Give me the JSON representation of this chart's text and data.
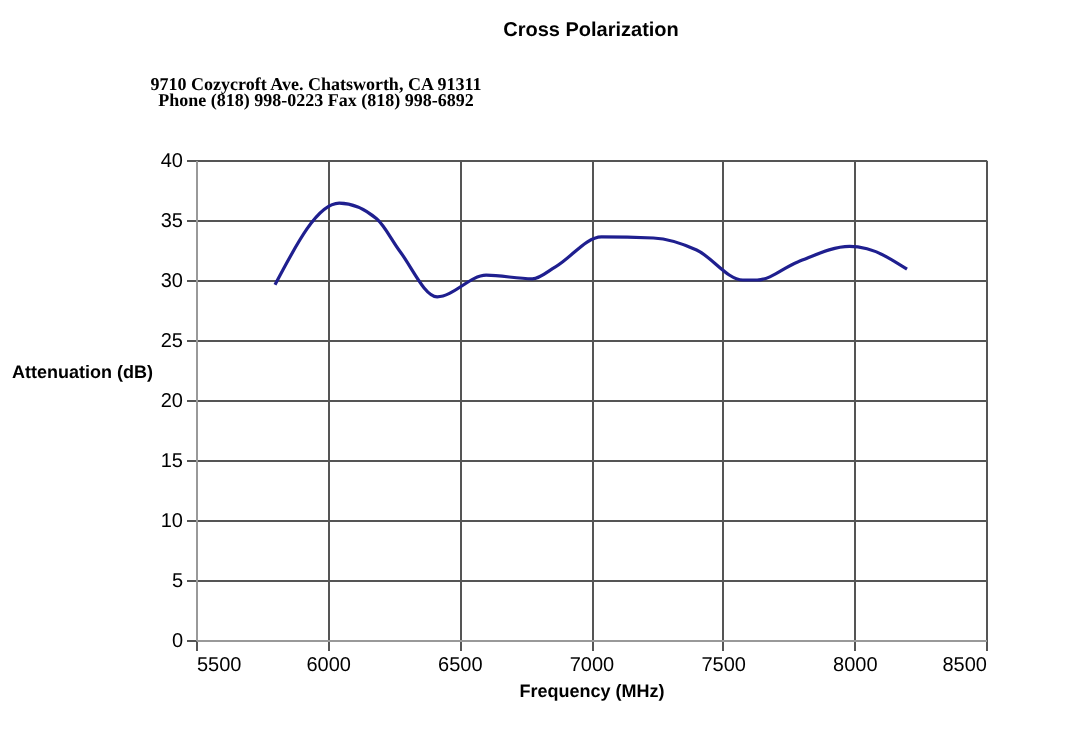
{
  "chart_data": {
    "type": "line",
    "title": "Cross Polarization",
    "xlabel": "Frequency (MHz)",
    "ylabel": "Attenuation (dB)",
    "annotations": [
      "9710 Cozycroft Ave. Chatsworth, CA 91311",
      "Phone (818) 998-0223 Fax (818) 998-6892"
    ],
    "x": [
      5800,
      6044,
      6186,
      6274,
      6416,
      6602,
      6777,
      6865,
      7040,
      7237,
      7401,
      7577,
      7631,
      7785,
      7982,
      8048,
      8200
    ],
    "series": [
      {
        "color": "#1f1f8f",
        "values": [
          29.6,
          36.4,
          35.1,
          32.4,
          28.6,
          30.4,
          30.1,
          31.1,
          33.6,
          33.5,
          32.5,
          30.0,
          30.0,
          31.5,
          32.8,
          32.6,
          30.9
        ]
      }
    ],
    "xlim": [
      5500,
      8500
    ],
    "xticks": [
      5500,
      6000,
      6500,
      7000,
      7500,
      8000,
      8500
    ],
    "ylim": [
      0,
      40
    ],
    "yticks": [
      0,
      5,
      10,
      15,
      20,
      25,
      30,
      35,
      40
    ],
    "grid": true,
    "marker": "none",
    "line_style": "solid"
  }
}
